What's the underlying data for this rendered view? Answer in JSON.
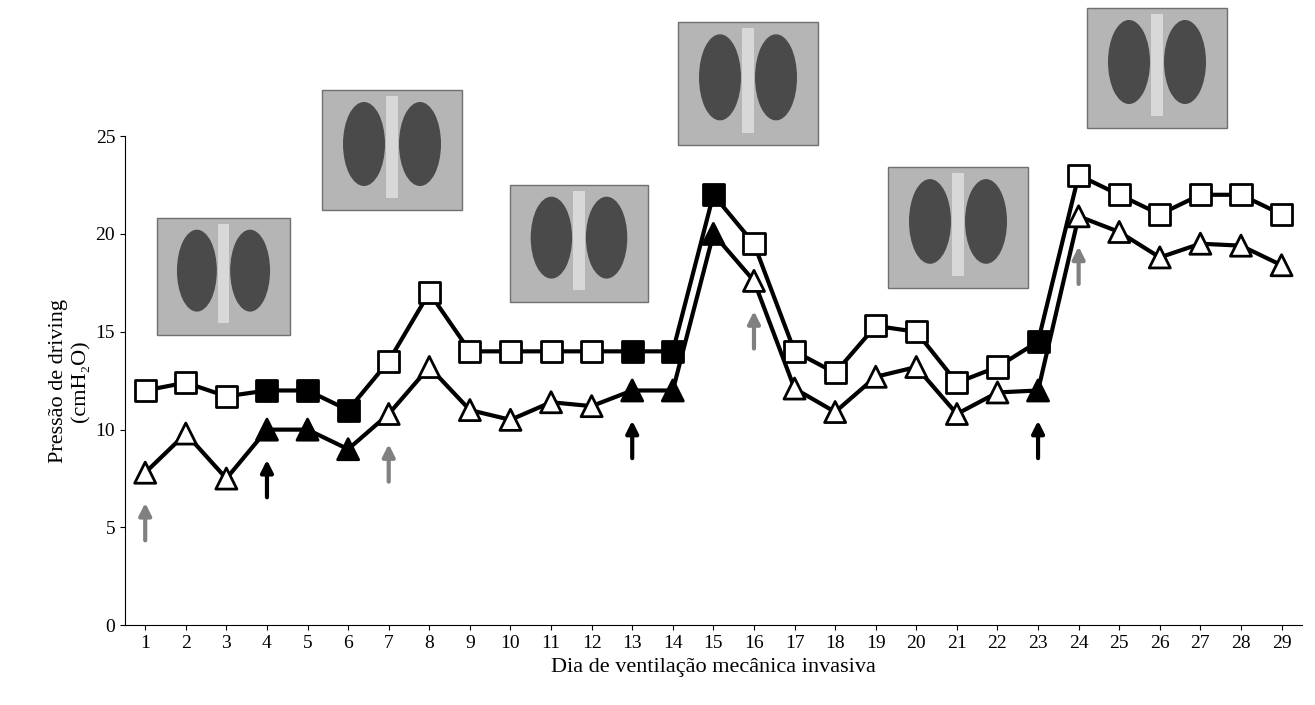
{
  "chart_data": {
    "type": "line",
    "y_label": "Pressão de driving\n(cmH₂O)",
    "x_label": "Dia de ventilação mecânica invasiva",
    "x": [
      1,
      2,
      3,
      4,
      5,
      6,
      7,
      8,
      9,
      10,
      11,
      12,
      13,
      14,
      15,
      16,
      17,
      18,
      19,
      20,
      21,
      22,
      23,
      24,
      25,
      26,
      27,
      28,
      29
    ],
    "series": [
      {
        "color": "#000000",
        "marker": "square",
        "values": [
          12,
          12.4,
          11.7,
          12,
          12,
          11,
          13.5,
          17,
          14,
          14,
          14,
          14,
          14,
          14,
          22,
          19.5,
          14,
          12.9,
          15.3,
          15,
          12.4,
          13.2,
          14.5,
          23,
          22,
          21,
          22,
          22,
          21
        ],
        "colors": [
          "#ffffff",
          "#ffffff",
          "#ffffff",
          "#000000",
          "#000000",
          "#000000",
          "#ffffff",
          "#ffffff",
          "#ffffff",
          "#ffffff",
          "#ffffff",
          "#ffffff",
          "#000000",
          "#000000",
          "#000000",
          "#ffffff",
          "#ffffff",
          "#ffffff",
          "#ffffff",
          "#ffffff",
          "#ffffff",
          "#ffffff",
          "#000000",
          "#ffffff",
          "#ffffff",
          "#ffffff",
          "#ffffff",
          "#ffffff",
          "#ffffff"
        ]
      },
      {
        "color": "#000000",
        "marker": "triangle",
        "values": [
          7.8,
          9.8,
          7.5,
          10,
          10,
          9,
          10.8,
          13.2,
          11,
          10.5,
          11.4,
          11.2,
          12,
          12,
          20,
          17.6,
          12.1,
          10.9,
          12.7,
          13.2,
          10.8,
          11.9,
          12,
          20.9,
          20.1,
          18.8,
          19.5,
          19.4,
          18.4
        ],
        "colors": [
          "#ffffff",
          "#ffffff",
          "#ffffff",
          "#000000",
          "#000000",
          "#000000",
          "#ffffff",
          "#ffffff",
          "#ffffff",
          "#ffffff",
          "#ffffff",
          "#ffffff",
          "#000000",
          "#000000",
          "#000000",
          "#ffffff",
          "#ffffff",
          "#ffffff",
          "#ffffff",
          "#ffffff",
          "#ffffff",
          "#ffffff",
          "#000000",
          "#ffffff",
          "#ffffff",
          "#ffffff",
          "#ffffff",
          "#ffffff",
          "#ffffff"
        ]
      }
    ],
    "arrows": [
      {
        "x": 1,
        "color": "#808080"
      },
      {
        "x": 4,
        "color": "#000000"
      },
      {
        "x": 7,
        "color": "#808080"
      },
      {
        "x": 13,
        "color": "#000000"
      },
      {
        "x": 16,
        "color": "#808080"
      },
      {
        "x": 23,
        "color": "#000000"
      },
      {
        "x": 24,
        "color": "#808080"
      }
    ],
    "xlim": [
      0.5,
      29.5
    ],
    "xticks": [
      1,
      2,
      3,
      4,
      5,
      6,
      7,
      8,
      9,
      10,
      11,
      12,
      13,
      14,
      15,
      16,
      17,
      18,
      19,
      20,
      21,
      22,
      23,
      24,
      25,
      26,
      27,
      28,
      29
    ],
    "ylim": [
      0,
      25
    ],
    "yticks": [
      0,
      5,
      10,
      15,
      20,
      25
    ],
    "grid": false
  }
}
